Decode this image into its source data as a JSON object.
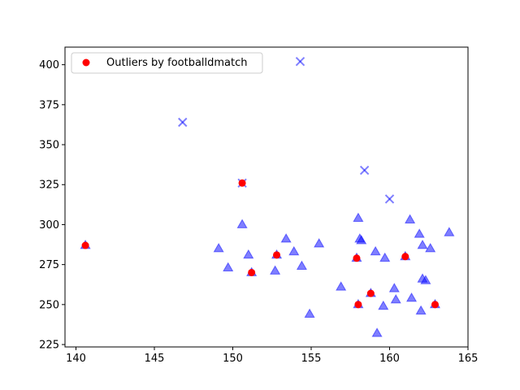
{
  "chart_data": {
    "type": "scatter",
    "title": "",
    "xlabel": "",
    "ylabel": "",
    "xlim": [
      139.3,
      165.0
    ],
    "ylim": [
      223.5,
      411.0
    ],
    "xticks": [
      140,
      145,
      150,
      155,
      160,
      165
    ],
    "yticks": [
      225,
      250,
      275,
      300,
      325,
      350,
      375,
      400
    ],
    "grid": false,
    "legend_position": "top-left",
    "legend": [
      {
        "label": "Outliers by footballdmatch",
        "color": "#ff0000",
        "marker": "circle"
      }
    ],
    "series": [
      {
        "marker": "triangle",
        "color": "#0000ff",
        "alpha": 0.5,
        "points": [
          [
            140.6,
            287
          ],
          [
            149.1,
            285
          ],
          [
            149.7,
            273
          ],
          [
            150.6,
            300
          ],
          [
            151.0,
            281
          ],
          [
            151.2,
            270
          ],
          [
            152.7,
            271
          ],
          [
            152.8,
            281
          ],
          [
            153.4,
            291
          ],
          [
            153.9,
            283
          ],
          [
            154.4,
            274
          ],
          [
            154.9,
            244
          ],
          [
            155.5,
            288
          ],
          [
            156.9,
            261
          ],
          [
            157.9,
            279
          ],
          [
            158.0,
            250
          ],
          [
            158.0,
            304
          ],
          [
            158.1,
            291
          ],
          [
            158.2,
            290
          ],
          [
            158.8,
            257
          ],
          [
            159.1,
            283
          ],
          [
            159.2,
            232
          ],
          [
            159.6,
            249
          ],
          [
            159.7,
            279
          ],
          [
            160.3,
            260
          ],
          [
            160.4,
            253
          ],
          [
            161.0,
            280
          ],
          [
            161.3,
            303
          ],
          [
            161.4,
            254
          ],
          [
            161.9,
            294
          ],
          [
            162.0,
            246
          ],
          [
            162.1,
            287
          ],
          [
            162.1,
            266
          ],
          [
            162.3,
            265
          ],
          [
            162.6,
            285
          ],
          [
            162.9,
            250
          ],
          [
            163.8,
            295
          ]
        ]
      },
      {
        "marker": "x",
        "color": "#0000ff",
        "alpha": 0.5,
        "points": [
          [
            146.8,
            364
          ],
          [
            150.6,
            326
          ],
          [
            154.3,
            402
          ],
          [
            158.4,
            334
          ],
          [
            160.0,
            316
          ]
        ]
      },
      {
        "name": "Outliers by footballdmatch",
        "marker": "circle",
        "color": "#ff0000",
        "alpha": 1,
        "points": [
          [
            140.6,
            287
          ],
          [
            150.6,
            326
          ],
          [
            151.2,
            270
          ],
          [
            152.8,
            281
          ],
          [
            157.9,
            279
          ],
          [
            158.0,
            250
          ],
          [
            158.8,
            257
          ],
          [
            161.0,
            280
          ],
          [
            162.9,
            250
          ]
        ]
      }
    ]
  }
}
